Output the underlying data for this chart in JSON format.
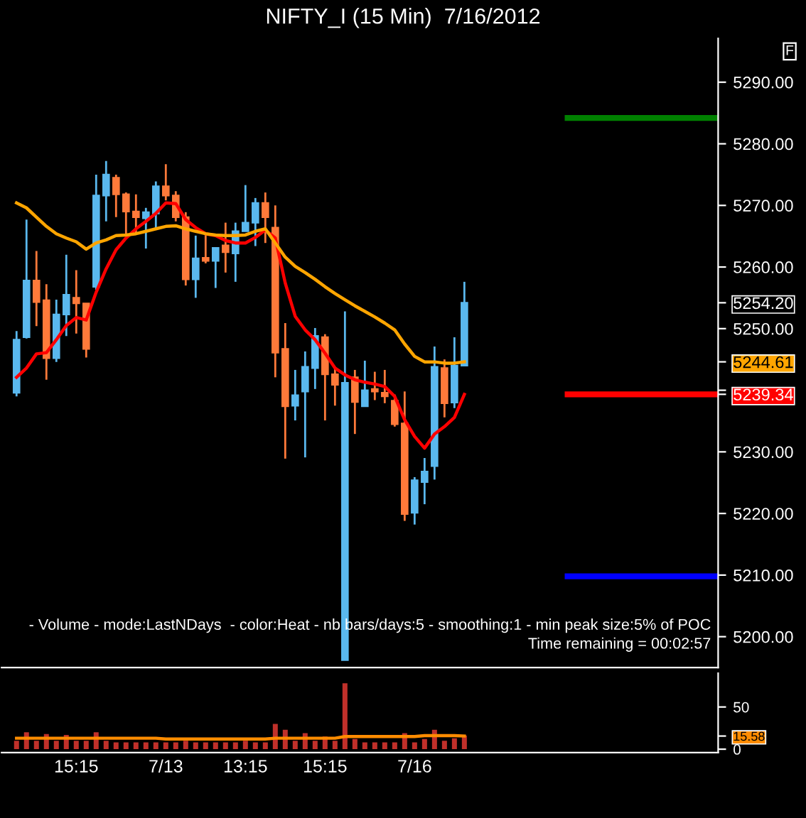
{
  "chart_data": [
    {
      "type": "candlestick",
      "title": "NIFTY_I (15 Min)  7/16/2012",
      "categories": [
        null,
        null,
        null,
        null,
        null,
        null,
        null,
        null,
        null,
        null,
        null,
        null,
        null,
        null,
        null,
        null,
        null,
        null,
        null,
        null,
        null,
        null,
        null,
        null,
        null,
        null,
        null,
        null,
        null,
        null,
        null,
        null,
        null,
        null,
        null,
        null,
        null,
        null,
        null,
        null,
        null,
        null,
        null,
        null,
        null,
        null,
        null,
        null,
        null,
        null,
        null,
        null,
        null,
        null,
        null,
        null,
        null,
        null,
        null,
        null,
        null,
        null,
        null,
        null,
        null,
        null,
        null,
        null,
        null,
        null,
        null,
        null
      ],
      "ohlc": [
        null,
        [
          5239.6,
          5249.6,
          5239.0,
          5248.2
        ],
        [
          5248.6,
          5267.7,
          5248.4,
          5257.8
        ],
        [
          5257.8,
          5262.6,
          5250.4,
          5254.3
        ],
        [
          5254.6,
          5257.2,
          5241.7,
          5245.2
        ],
        [
          5245.2,
          5254.7,
          5244.6,
          5252.3
        ],
        [
          5252.3,
          5262.0,
          5248.8,
          5255.5
        ],
        [
          5255.0,
          5259.5,
          5249.2,
          5254.1
        ],
        [
          5254.1,
          5254.1,
          5245.3,
          5246.7
        ],
        [
          5256.8,
          5275.0,
          5256.3,
          5271.6
        ],
        [
          5271.6,
          5277.2,
          5267.4,
          5275.0
        ],
        [
          5274.5,
          5275.0,
          5268.1,
          5271.8
        ],
        [
          5271.8,
          5272.1,
          5265.4,
          5269.0
        ],
        [
          5269.0,
          5271.8,
          5265.4,
          5268.1
        ],
        [
          5267.9,
          5269.6,
          5263.0,
          5268.9
        ],
        [
          5268.7,
          5273.9,
          5266.2,
          5273.1
        ],
        [
          5273.1,
          5276.7,
          5270.8,
          5271.6
        ],
        [
          5271.6,
          5272.3,
          5267.4,
          5268.1
        ],
        [
          5268.1,
          5268.9,
          5257.0,
          5258.0
        ],
        [
          5258.0,
          5265.1,
          5255.0,
          5261.4
        ],
        [
          5261.5,
          5265.4,
          5260.6,
          5261.0
        ],
        [
          5261.0,
          5263.1,
          5256.6,
          5263.1
        ],
        [
          5263.5,
          5267.2,
          5259.1,
          5262.4
        ],
        [
          5262.2,
          5267.2,
          5257.6,
          5265.8
        ],
        [
          5265.8,
          5273.3,
          5265.8,
          5267.2
        ],
        [
          5267.2,
          5271.2,
          5263.4,
          5270.4
        ],
        [
          5270.4,
          5272.1,
          5263.9,
          5268.1
        ],
        [
          5266.4,
          5270.0,
          5242.1,
          5246.1
        ],
        [
          5246.7,
          5250.9,
          5228.9,
          5237.4
        ],
        [
          5237.5,
          5243.3,
          5235.1,
          5239.2
        ],
        [
          5239.8,
          5246.3,
          5229.1,
          5243.8
        ],
        [
          5243.6,
          5250.1,
          5240.2,
          5248.8
        ],
        [
          5248.6,
          5249.1,
          5235.1,
          5242.6
        ],
        [
          5242.6,
          5243.8,
          5237.5,
          5240.9
        ],
        [
          5196.2,
          5252.8,
          5196.2,
          5241.2
        ],
        [
          5242.1,
          5243.3,
          5232.9,
          5238.1
        ],
        [
          5237.4,
          5244.8,
          5237.4,
          5240.0
        ],
        [
          5240.2,
          5243.0,
          5238.4,
          5239.8
        ],
        [
          5239.6,
          5243.3,
          5237.9,
          5239.0
        ],
        [
          5238.3,
          5239.3,
          5234.1,
          5234.5
        ],
        [
          5234.6,
          5239.8,
          5218.8,
          5219.9
        ],
        [
          5220.1,
          5225.9,
          5218.2,
          5225.4
        ],
        [
          5225.1,
          5229.0,
          5221.5,
          5226.8
        ],
        [
          5227.7,
          5247.1,
          5225.5,
          5243.8
        ],
        [
          5243.6,
          5245.0,
          5235.6,
          5237.9
        ],
        [
          5238.0,
          5248.6,
          5237.1,
          5244.0
        ],
        [
          5244.0,
          5257.6,
          5244.0,
          5254.2
        ],
        null,
        null,
        null,
        null,
        null,
        null,
        null,
        null,
        null,
        null,
        null,
        null,
        null,
        null,
        null,
        null,
        null,
        null,
        null,
        null,
        null,
        null,
        null,
        null,
        null
      ],
      "colors": [
        null,
        "#5ab8ee",
        "#5ab8ee",
        "#ff7a3a",
        "#ff7a3a",
        "#5ab8ee",
        "#5ab8ee",
        "#ff7a3a",
        "#ff7a3a",
        "#5ab8ee",
        "#5ab8ee",
        "#ff7a3a",
        "#ff7a3a",
        "#ff7a3a",
        "#5ab8ee",
        "#5ab8ee",
        "#ff7a3a",
        "#ff7a3a",
        "#ff7a3a",
        "#5ab8ee",
        "#ff7a3a",
        "#5ab8ee",
        "#ff7a3a",
        "#5ab8ee",
        "#5ab8ee",
        "#5ab8ee",
        "#ff7a3a",
        "#ff7a3a",
        "#ff7a3a",
        "#5ab8ee",
        "#5ab8ee",
        "#5ab8ee",
        "#ff7a3a",
        "#ff7a3a",
        "#5ab8ee",
        "#ff7a3a",
        "#5ab8ee",
        "#ff7a3a",
        "#ff7a3a",
        "#ff7a3a",
        "#ff7a3a",
        "#5ab8ee",
        "#5ab8ee",
        "#5ab8ee",
        "#ff7a3a",
        "#5ab8ee",
        "#5ab8ee",
        null,
        null,
        null,
        null,
        null,
        null,
        null,
        null,
        null,
        null,
        null,
        null,
        null,
        null,
        null,
        null,
        null,
        null,
        null,
        null,
        null,
        null,
        null,
        null,
        null
      ],
      "series": [
        {
          "type": "line",
          "color": "#ff0000",
          "values": [
            null,
            5242.1,
            5243.6,
            5245.9,
            5246.1,
            5248.2,
            5250.5,
            5251.8,
            5251.4,
            5255.9,
            5259.7,
            5262.8,
            5264.7,
            5266.2,
            5267.4,
            5268.7,
            5270.4,
            5270.3,
            5267.7,
            5266.4,
            5265.4,
            5265.1,
            5264.3,
            5263.9,
            5263.9,
            5264.8,
            5266.0,
            5264.7,
            5257.4,
            5252.0,
            5249.8,
            5248.2,
            5246.0,
            5243.6,
            5242.5,
            5241.7,
            5241.3,
            5241.0,
            5240.6,
            5239.0,
            5235.2,
            5232.5,
            5230.6,
            5232.9,
            5234.1,
            5235.6,
            5239.34,
            null,
            null,
            null,
            null,
            null,
            null,
            null,
            null,
            null,
            null,
            null,
            null,
            null,
            null,
            null,
            null,
            null,
            null,
            null,
            null,
            null,
            null,
            null,
            null,
            null
          ]
        },
        {
          "type": "line",
          "color": "#ffa500",
          "values": [
            null,
            5270.4,
            5269.6,
            5268.1,
            5266.6,
            5265.4,
            5264.7,
            5264.1,
            5262.9,
            5263.9,
            5264.4,
            5265.1,
            5265.2,
            5265.4,
            5265.8,
            5266.2,
            5266.6,
            5266.7,
            5266.2,
            5265.8,
            5265.4,
            5265.2,
            5265.1,
            5265.1,
            5265.2,
            5265.8,
            5266.2,
            5263.9,
            5261.6,
            5260.1,
            5259.1,
            5258.0,
            5256.8,
            5255.7,
            5254.7,
            5253.7,
            5252.8,
            5251.9,
            5250.9,
            5249.8,
            5247.5,
            5245.5,
            5244.6,
            5244.6,
            5244.4,
            5244.4,
            5244.61,
            null,
            null,
            null,
            null,
            null,
            null,
            null,
            null,
            null,
            null,
            null,
            null,
            null,
            null,
            null,
            null,
            null,
            null,
            null,
            null,
            null,
            null,
            null,
            null,
            null
          ]
        }
      ],
      "ylim": [
        5195.0,
        5297.1
      ],
      "yticks": [
        {
          "value": 5200,
          "label": "5200.00"
        },
        {
          "value": 5210,
          "label": "5210.00"
        },
        {
          "value": 5220,
          "label": "5220.00"
        },
        {
          "value": 5230,
          "label": "5230.00"
        },
        {
          "value": 5240,
          "label": null
        },
        {
          "value": 5239.34,
          "label": "5239.34"
        },
        {
          "value": 5244.61,
          "label": "5244.61"
        },
        {
          "value": 5254.2,
          "label": "5254.20"
        },
        {
          "value": 5250,
          "label": "5250.00"
        },
        {
          "value": 5260,
          "label": "5260.00"
        },
        {
          "value": 5270,
          "label": "5270.00"
        },
        {
          "value": 5280,
          "label": "5280.00"
        },
        {
          "value": 5290,
          "label": "5290.00"
        }
      ],
      "ref_lines": [
        {
          "axis": "y",
          "value": 5284.2,
          "color": "#008000"
        },
        {
          "axis": "y",
          "value": 5239.34,
          "color": "#ff0000"
        },
        {
          "axis": "y",
          "value": 5209.8,
          "color": "#0000ff"
        }
      ],
      "annotations": [
        "- Volume - mode:LastNDays  - color:Heat - nb bars/days:5 - smoothing:1 - min peak size:5% of POC",
        "Time remaining = 00:02:57",
        "F"
      ],
      "tick_labels": "y"
    },
    {
      "type": "bar",
      "categories": [
        null,
        null,
        null,
        null,
        null,
        null,
        null,
        "15:15",
        null,
        null,
        null,
        null,
        null,
        null,
        null,
        null,
        "7/13",
        null,
        null,
        null,
        null,
        null,
        null,
        null,
        "13:15",
        null,
        null,
        null,
        null,
        null,
        null,
        null,
        "15:15",
        null,
        null,
        null,
        null,
        null,
        null,
        null,
        null,
        "7/16",
        null,
        null,
        null,
        null,
        null,
        null,
        null,
        null,
        null,
        null,
        null,
        null,
        null,
        null,
        null,
        null,
        null,
        null,
        null,
        null,
        null,
        null,
        null,
        null,
        null,
        null,
        null,
        null,
        null,
        null
      ],
      "series": [
        {
          "type": "bar",
          "color": "#c0302a",
          "values": [
            null,
            10,
            20,
            10,
            18,
            10,
            17,
            10,
            10,
            20,
            10,
            8,
            8,
            8,
            8,
            8,
            8,
            8,
            10,
            8,
            8,
            8,
            8,
            8,
            10,
            8,
            8,
            30,
            23,
            10,
            19,
            10,
            15,
            10,
            78,
            12,
            8,
            8,
            8,
            8,
            19,
            8,
            12,
            23,
            10,
            13,
            16,
            null,
            null,
            null,
            null,
            null,
            null,
            null,
            null,
            null,
            null,
            null,
            null,
            null,
            null,
            null,
            null,
            null,
            null,
            null,
            null,
            null,
            null,
            null,
            null,
            null
          ]
        },
        {
          "type": "line",
          "color": "#ff8c00",
          "values": [
            null,
            13,
            13,
            13,
            13,
            13,
            13,
            13,
            13,
            13,
            13,
            13,
            13,
            13,
            13,
            13,
            12,
            12,
            12,
            12,
            12,
            12,
            12,
            12,
            12,
            12,
            12,
            13,
            13,
            13,
            13,
            13,
            13,
            13,
            15,
            15,
            15,
            15,
            15,
            15,
            15,
            15,
            16,
            16,
            16,
            16,
            15.58,
            null,
            null,
            null,
            null,
            null,
            null,
            null,
            null,
            null,
            null,
            null,
            null,
            null,
            null,
            null,
            null,
            null,
            null,
            null,
            null,
            null,
            null,
            null,
            null,
            null
          ]
        }
      ],
      "ylim": [
        -4,
        90
      ],
      "yticks": [
        0,
        50,
        {
          "value": 15.58,
          "label": "15.58"
        }
      ]
    }
  ]
}
